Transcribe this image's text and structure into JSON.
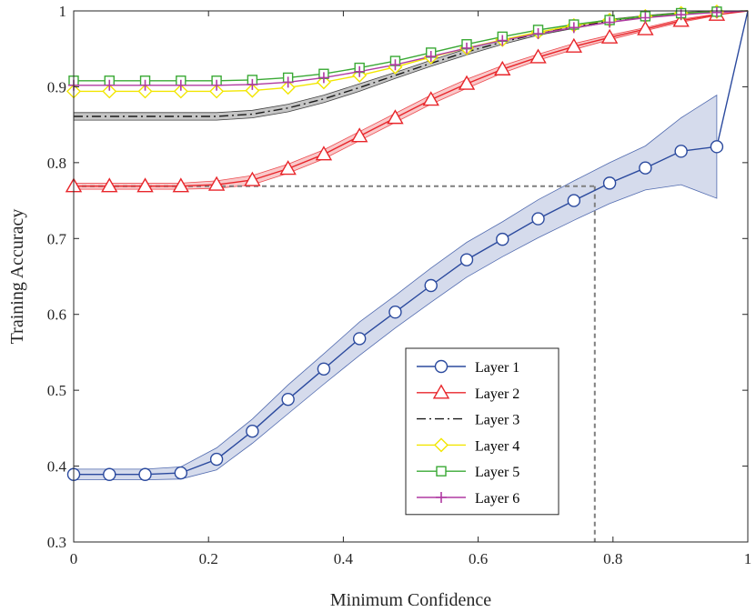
{
  "chart_data": {
    "type": "line",
    "xlabel": "Minimum Confidence",
    "ylabel": "Training Accuracy",
    "xlim": [
      0,
      1
    ],
    "ylim": [
      0.3,
      1
    ],
    "xticks": [
      0,
      0.2,
      0.4,
      0.6,
      0.8,
      1
    ],
    "xtick_labels": [
      "0",
      "0.2",
      "0.4",
      "0.6",
      "0.8",
      "1"
    ],
    "yticks": [
      0.3,
      0.4,
      0.5,
      0.6,
      0.7,
      0.8,
      0.9,
      1
    ],
    "ytick_labels": [
      "0.3",
      "0.4",
      "0.5",
      "0.6",
      "0.7",
      "0.8",
      "0.9",
      "1"
    ],
    "grid": false,
    "legend_position": "lower-right",
    "x": [
      0,
      0.053,
      0.106,
      0.159,
      0.212,
      0.265,
      0.318,
      0.371,
      0.424,
      0.477,
      0.53,
      0.583,
      0.636,
      0.689,
      0.742,
      0.795,
      0.848,
      0.901,
      0.954
    ],
    "series": [
      {
        "name": "Layer 1",
        "color": "#2b4a9e",
        "marker": "circle",
        "dash": "solid",
        "values": [
          0.389,
          0.389,
          0.389,
          0.391,
          0.409,
          0.446,
          0.488,
          0.528,
          0.568,
          0.603,
          0.638,
          0.672,
          0.699,
          0.726,
          0.75,
          0.773,
          0.793,
          0.815,
          0.821
        ],
        "band_lower": [
          0.382,
          0.382,
          0.382,
          0.383,
          0.395,
          0.43,
          0.469,
          0.508,
          0.546,
          0.582,
          0.616,
          0.649,
          0.676,
          0.701,
          0.724,
          0.746,
          0.764,
          0.771,
          0.753
        ],
        "band_upper": [
          0.396,
          0.396,
          0.396,
          0.399,
          0.424,
          0.462,
          0.507,
          0.548,
          0.59,
          0.625,
          0.661,
          0.695,
          0.722,
          0.751,
          0.776,
          0.8,
          0.822,
          0.859,
          0.889
        ]
      },
      {
        "name": "Layer 2",
        "color": "#e8262b",
        "marker": "triangle",
        "dash": "solid",
        "values": [
          0.769,
          0.769,
          0.769,
          0.769,
          0.771,
          0.777,
          0.792,
          0.811,
          0.835,
          0.859,
          0.883,
          0.904,
          0.923,
          0.939,
          0.953,
          0.965,
          0.976,
          0.987,
          0.995
        ],
        "band_lower": [
          0.765,
          0.765,
          0.765,
          0.765,
          0.766,
          0.771,
          0.786,
          0.805,
          0.829,
          0.853,
          0.877,
          0.898,
          0.918,
          0.935,
          0.949,
          0.962,
          0.974,
          0.985,
          0.994
        ],
        "band_upper": [
          0.773,
          0.773,
          0.773,
          0.773,
          0.776,
          0.783,
          0.798,
          0.817,
          0.841,
          0.865,
          0.889,
          0.91,
          0.928,
          0.943,
          0.957,
          0.968,
          0.978,
          0.989,
          0.996
        ]
      },
      {
        "name": "Layer 3",
        "color": "#1a1a1a",
        "marker": "none",
        "dash": "dashdot",
        "values": [
          0.861,
          0.861,
          0.861,
          0.861,
          0.861,
          0.864,
          0.872,
          0.884,
          0.899,
          0.915,
          0.931,
          0.946,
          0.959,
          0.97,
          0.979,
          0.987,
          0.993,
          0.997,
          0.999
        ],
        "band_lower": [
          0.856,
          0.856,
          0.856,
          0.856,
          0.856,
          0.859,
          0.867,
          0.879,
          0.894,
          0.911,
          0.927,
          0.942,
          0.956,
          0.968,
          0.977,
          0.985,
          0.992,
          0.996,
          0.999
        ],
        "band_upper": [
          0.866,
          0.866,
          0.866,
          0.866,
          0.866,
          0.869,
          0.877,
          0.889,
          0.904,
          0.919,
          0.935,
          0.95,
          0.962,
          0.972,
          0.981,
          0.989,
          0.994,
          0.998,
          1.0
        ]
      },
      {
        "name": "Layer 4",
        "color": "#f2e600",
        "marker": "diamond",
        "dash": "solid",
        "values": [
          0.894,
          0.894,
          0.894,
          0.894,
          0.894,
          0.895,
          0.899,
          0.906,
          0.915,
          0.926,
          0.939,
          0.951,
          0.962,
          0.972,
          0.981,
          0.988,
          0.993,
          0.997,
          0.999
        ]
      },
      {
        "name": "Layer 5",
        "color": "#3aa935",
        "marker": "square",
        "dash": "solid",
        "values": [
          0.908,
          0.908,
          0.908,
          0.908,
          0.908,
          0.909,
          0.912,
          0.917,
          0.925,
          0.934,
          0.945,
          0.956,
          0.966,
          0.975,
          0.982,
          0.988,
          0.993,
          0.997,
          0.999
        ]
      },
      {
        "name": "Layer 6",
        "color": "#b03aa2",
        "marker": "plus",
        "dash": "solid",
        "values": [
          0.902,
          0.902,
          0.902,
          0.902,
          0.902,
          0.903,
          0.906,
          0.912,
          0.92,
          0.929,
          0.94,
          0.951,
          0.961,
          0.97,
          0.978,
          0.985,
          0.991,
          0.995,
          0.998
        ]
      }
    ],
    "guide_lines": {
      "color": "#7f7f7f",
      "horizontal_y": 0.769,
      "vertical_x": 0.773
    },
    "endpoint": {
      "x": 1,
      "y": 1
    }
  }
}
